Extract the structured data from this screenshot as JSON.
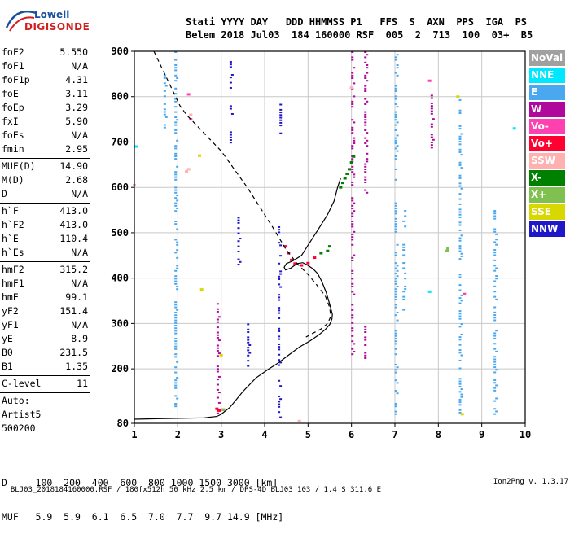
{
  "logo": {
    "line1": "Lowell",
    "line2": "DIGISONDE"
  },
  "header": {
    "line1": "Stati YYYY DAY   DDD HHMMSS P1   FFS  S  AXN  PPS  IGA  PS",
    "line2": "Belem 2018 Jul03  184 160000 RSF  005  2  713  100  03+  B5"
  },
  "params": {
    "group1": [
      {
        "k": "foF2",
        "v": "5.550"
      },
      {
        "k": "foF1",
        "v": "N/A"
      },
      {
        "k": "foF1p",
        "v": "4.31"
      },
      {
        "k": "foE",
        "v": "3.11"
      },
      {
        "k": "foEp",
        "v": "3.29"
      },
      {
        "k": "fxI",
        "v": "5.90"
      },
      {
        "k": "foEs",
        "v": "N/A"
      },
      {
        "k": "fmin",
        "v": "2.95"
      }
    ],
    "group2": [
      {
        "k": "MUF(D)",
        "v": "14.90"
      },
      {
        "k": "M(D)",
        "v": "2.68"
      },
      {
        "k": "D",
        "v": "N/A"
      }
    ],
    "group3": [
      {
        "k": "h`F",
        "v": "413.0"
      },
      {
        "k": "h`F2",
        "v": "413.0"
      },
      {
        "k": "h`E",
        "v": "110.4"
      },
      {
        "k": "h`Es",
        "v": "N/A"
      }
    ],
    "group4": [
      {
        "k": "hmF2",
        "v": "315.2"
      },
      {
        "k": "hmF1",
        "v": "N/A"
      },
      {
        "k": "hmE",
        "v": "99.1"
      },
      {
        "k": "yF2",
        "v": "151.4"
      },
      {
        "k": "yF1",
        "v": "N/A"
      },
      {
        "k": "yE",
        "v": "8.9"
      },
      {
        "k": "B0",
        "v": "231.5"
      },
      {
        "k": "B1",
        "v": "1.35"
      }
    ],
    "group5": [
      {
        "k": "C-level",
        "v": "11"
      }
    ],
    "group6": [
      "Auto:",
      "Artist5",
      "500200"
    ]
  },
  "footer": {
    "d_line": "D     100  200  400  600  800 1000 1500 3000 [km]",
    "muf_line": "MUF   5.9  5.9  6.1  6.5  7.0  7.7  9.7 14.9 [MHz]"
  },
  "bottom": {
    "left": "BLJ03_2018184160000.RSF / 180fx512h 50 kHz 2.5 km / DPS-4D BLJ03 103 / 1.4 S 311.6 E",
    "right": "Ion2Png v. 1.3.17"
  },
  "legend": [
    {
      "label": "NoVal",
      "color": "#a0a0a0"
    },
    {
      "label": "NNE",
      "color": "#00e8ff"
    },
    {
      "label": "E",
      "color": "#4aa8f0"
    },
    {
      "label": "W",
      "color": "#b0089c"
    },
    {
      "label": "Vo-",
      "color": "#ff40b0"
    },
    {
      "label": "Vo+",
      "color": "#ff0030"
    },
    {
      "label": "SSW",
      "color": "#ffb0b0"
    },
    {
      "label": "X-",
      "color": "#008000"
    },
    {
      "label": "X+",
      "color": "#80c050"
    },
    {
      "label": "SSE",
      "color": "#d8d800"
    },
    {
      "label": "NNW",
      "color": "#2018c8"
    }
  ],
  "chart_data": {
    "type": "scatter",
    "xlim": [
      1,
      10
    ],
    "ylim": [
      80,
      900
    ],
    "x_ticks": [
      "1",
      "2",
      "3",
      "4",
      "5",
      "6",
      "7",
      "8",
      "9",
      "10"
    ],
    "y_ticks": [
      "80",
      "200",
      "300",
      "400",
      "500",
      "600",
      "700",
      "800",
      "900"
    ],
    "grid": true,
    "curves": {
      "profile_solid": {
        "x": [
          0.0,
          1.5,
          2.6,
          2.9,
          3.0,
          3.2,
          3.5,
          3.8,
          4.1,
          4.3,
          4.55,
          4.8,
          5.05,
          5.25,
          5.4,
          5.5,
          5.55,
          5.56,
          5.5,
          5.42,
          5.32,
          5.22,
          5.12,
          5.0,
          4.88,
          4.75,
          4.6,
          4.48,
          4.45,
          4.5,
          4.65,
          4.85,
          5.05,
          5.25,
          5.45,
          5.6,
          5.68,
          5.75
        ],
        "y": [
          89,
          90,
          92,
          95,
          100,
          115,
          150,
          180,
          200,
          212,
          230,
          248,
          262,
          275,
          287,
          298,
          310,
          320,
          342,
          368,
          392,
          410,
          420,
          428,
          434,
          432,
          422,
          418,
          424,
          432,
          438,
          450,
          480,
          510,
          540,
          570,
          600,
          620
        ]
      },
      "profile_dashed": {
        "x": [
          1.45,
          1.7,
          1.9,
          2.05,
          2.2,
          2.4,
          2.7,
          3.0,
          3.3,
          3.6,
          3.9,
          4.2,
          4.5,
          4.75,
          5.0,
          5.2,
          5.4,
          5.5,
          5.52,
          5.45,
          5.3,
          5.1,
          4.95
        ],
        "y": [
          900,
          850,
          810,
          780,
          760,
          740,
          710,
          680,
          640,
          600,
          555,
          510,
          462,
          432,
          408,
          385,
          360,
          335,
          315,
          300,
          288,
          278,
          270
        ]
      }
    },
    "echo_traces": [
      {
        "color": "#4aa8f0",
        "x": 1.95,
        "y_from": 110,
        "y_to": 900
      },
      {
        "color": "#4aa8f0",
        "x": 1.7,
        "y_from": 730,
        "y_to": 860
      },
      {
        "color": "#b0089c",
        "x": 2.92,
        "y_from": 100,
        "y_to": 345
      },
      {
        "color": "#2018c8",
        "x": 3.22,
        "y_from": 690,
        "y_to": 890
      },
      {
        "color": "#2018c8",
        "x": 3.4,
        "y_from": 430,
        "y_to": 535
      },
      {
        "color": "#2018c8",
        "x": 3.62,
        "y_from": 200,
        "y_to": 300
      },
      {
        "color": "#2018c8",
        "x": 4.33,
        "y_from": 90,
        "y_to": 520
      },
      {
        "color": "#2018c8",
        "x": 4.37,
        "y_from": 720,
        "y_to": 790
      },
      {
        "color": "#b0089c",
        "x": 6.02,
        "y_from": 220,
        "y_to": 900
      },
      {
        "color": "#b0089c",
        "x": 6.32,
        "y_from": 580,
        "y_to": 900
      },
      {
        "color": "#b0089c",
        "x": 6.32,
        "y_from": 220,
        "y_to": 300
      },
      {
        "color": "#4aa8f0",
        "x": 7.02,
        "y_from": 100,
        "y_to": 900
      },
      {
        "color": "#4aa8f0",
        "x": 7.2,
        "y_from": 330,
        "y_to": 550
      },
      {
        "color": "#b0089c",
        "x": 7.85,
        "y_from": 680,
        "y_to": 810
      },
      {
        "color": "#4aa8f0",
        "x": 8.5,
        "y_from": 100,
        "y_to": 800
      },
      {
        "color": "#4aa8f0",
        "x": 9.3,
        "y_from": 100,
        "y_to": 550
      }
    ],
    "echo_clusters": [
      {
        "color": "#008000",
        "x": [
          5.75,
          5.8,
          5.85,
          5.9,
          5.95,
          6.0,
          6.05,
          5.5,
          5.45,
          5.3
        ],
        "y": [
          600,
          610,
          620,
          630,
          640,
          655,
          668,
          470,
          460,
          455
        ]
      },
      {
        "color": "#ff0030",
        "x": [
          4.48,
          4.55,
          4.62,
          4.7,
          4.85,
          5.0,
          5.15,
          2.9,
          2.95,
          3.05
        ],
        "y": [
          470,
          455,
          440,
          432,
          428,
          433,
          445,
          112,
          108,
          110
        ]
      },
      {
        "color": "#ffb0b0",
        "x": [
          1.0,
          2.2,
          2.25,
          2.3,
          4.8,
          6.0
        ],
        "y": [
          605,
          635,
          640,
          760,
          85,
          820
        ]
      },
      {
        "color": "#d8d800",
        "x": [
          2.5,
          2.55,
          3.0,
          8.45,
          8.55
        ],
        "y": [
          670,
          375,
          230,
          800,
          100
        ]
      },
      {
        "color": "#80c050",
        "x": [
          3.05,
          8.2,
          8.22
        ],
        "y": [
          110,
          460,
          465
        ]
      },
      {
        "color": "#00e8ff",
        "x": [
          9.75,
          1.05,
          7.8
        ],
        "y": [
          730,
          690,
          370
        ]
      },
      {
        "color": "#ff40b0",
        "x": [
          2.25,
          2.3,
          7.8,
          8.6
        ],
        "y": [
          805,
          750,
          835,
          365
        ]
      }
    ]
  }
}
